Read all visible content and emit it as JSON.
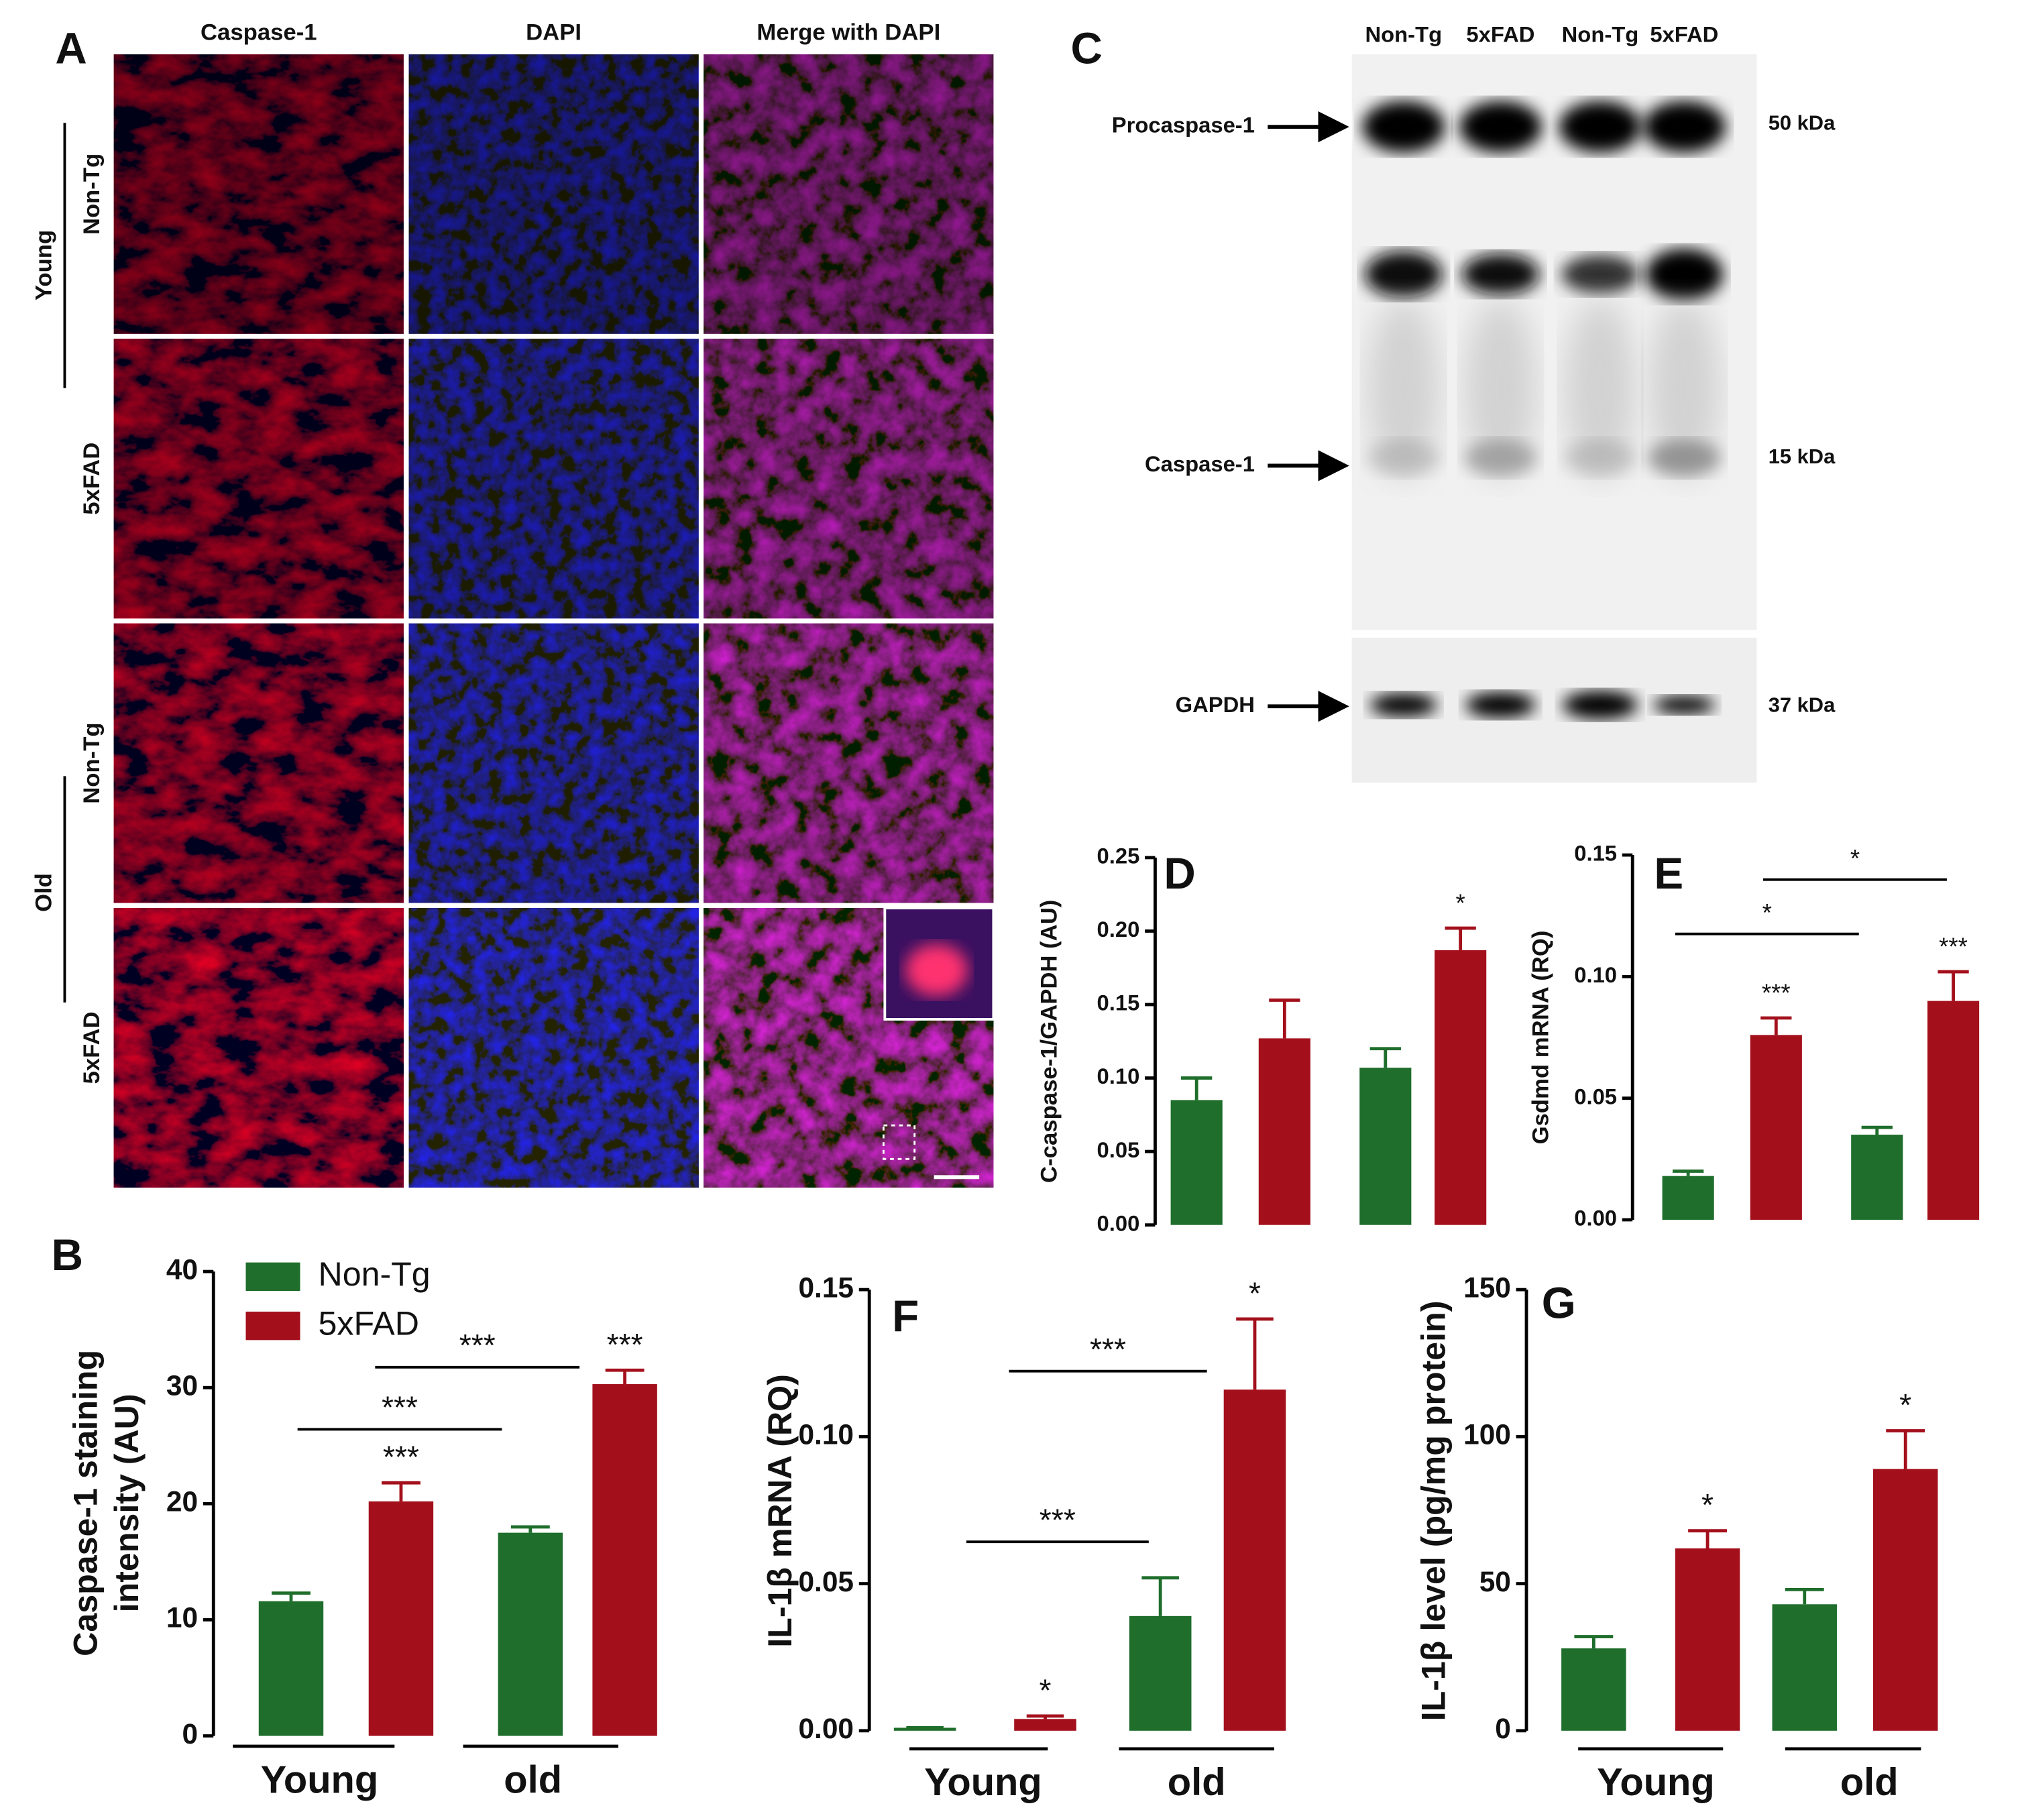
{
  "panel_a": {
    "label": "A",
    "columns": [
      "Caspase-1",
      "DAPI",
      "Merge with DAPI"
    ],
    "rows": [
      "Non-Tg",
      "5xFAD",
      "Non-Tg",
      "5xFAD"
    ],
    "groups": [
      "Young",
      "Old"
    ]
  },
  "panel_c": {
    "label": "C",
    "lanes": [
      "Non-Tg",
      "5xFAD",
      "Non-Tg",
      "5xFAD"
    ],
    "markers": [
      "Procaspase-1",
      "Caspase-1",
      "GAPDH"
    ],
    "sizes": [
      "50 kDa",
      "15 kDa",
      "37 kDa"
    ]
  },
  "chart_data": [
    {
      "type": "bar",
      "panel": "B",
      "ylabel": [
        "Caspase-1 staining",
        "intensity (AU)"
      ],
      "categories": [
        "Young",
        "old"
      ],
      "legend": "upper left",
      "series": [
        {
          "name": "Non-Tg",
          "color": "#1f6e2c",
          "values": [
            11.6,
            17.5
          ],
          "errors": [
            0.7,
            0.5
          ],
          "significance": [
            null,
            null
          ]
        },
        {
          "name": "5xFAD",
          "color": "#a3101c",
          "values": [
            20.2,
            30.3
          ],
          "errors": [
            1.6,
            1.2
          ],
          "significance": [
            "***",
            "***"
          ]
        }
      ],
      "ylim": [
        0,
        40
      ],
      "yticks": [
        0,
        10,
        20,
        30,
        40
      ],
      "brackets": [
        "***",
        "***"
      ]
    },
    {
      "type": "bar",
      "panel": "D",
      "ylabel": [
        "C-caspase-1/GAPDH (AU)"
      ],
      "categories": [
        null,
        null
      ],
      "series": [
        {
          "color": "#1f6e2c",
          "values": [
            0.085,
            0.107
          ],
          "errors": [
            0.015,
            0.013
          ],
          "significance": [
            null,
            null
          ]
        },
        {
          "color": "#a3101c",
          "values": [
            0.127,
            0.187
          ],
          "errors": [
            0.026,
            0.015
          ],
          "significance": [
            null,
            "*"
          ]
        }
      ],
      "ylim": [
        0,
        0.25
      ],
      "yticks": [
        {
          "value": 0,
          "label": "0.00"
        },
        {
          "value": 0.05,
          "label": "0.05"
        },
        {
          "value": 0.1,
          "label": "0.10"
        },
        {
          "value": 0.15,
          "label": "0.15"
        },
        {
          "value": 0.2,
          "label": "0.20"
        },
        {
          "value": 0.25,
          "label": "0.25"
        }
      ],
      "brackets": []
    },
    {
      "type": "bar",
      "panel": "E",
      "ylabel": [
        "Gsdmd mRNA (RQ)"
      ],
      "categories": [
        null,
        null
      ],
      "series": [
        {
          "color": "#1f6e2c",
          "values": [
            0.018,
            0.035
          ],
          "errors": [
            0.002,
            0.003
          ],
          "significance": [
            null,
            null
          ]
        },
        {
          "color": "#a3101c",
          "values": [
            0.076,
            0.09
          ],
          "errors": [
            0.007,
            0.012
          ],
          "significance": [
            "***",
            "***"
          ]
        }
      ],
      "ylim": [
        0,
        0.15
      ],
      "yticks": [
        {
          "value": 0,
          "label": "0.00"
        },
        {
          "value": 0.05,
          "label": "0.05"
        },
        {
          "value": 0.1,
          "label": "0.10"
        },
        {
          "value": 0.15,
          "label": "0.15"
        }
      ],
      "brackets": [
        "*",
        "*"
      ]
    },
    {
      "type": "bar",
      "panel": "F",
      "ylabel": [
        "IL-1β mRNA (RQ)"
      ],
      "categories": [
        "Young",
        "old"
      ],
      "series": [
        {
          "color": "#1f6e2c",
          "values": [
            0.001,
            0.039
          ],
          "errors": [
            0,
            0.013
          ],
          "significance": [
            null,
            null
          ]
        },
        {
          "color": "#a3101c",
          "values": [
            0.004,
            0.116
          ],
          "errors": [
            0.001,
            0.024
          ],
          "significance": [
            "*",
            "*"
          ]
        }
      ],
      "ylim": [
        0,
        0.15
      ],
      "yticks": [
        {
          "value": 0,
          "label": "0.00"
        },
        {
          "value": 0.05,
          "label": "0.05"
        },
        {
          "value": 0.1,
          "label": "0.10"
        },
        {
          "value": 0.15,
          "label": "0.15"
        }
      ],
      "brackets": [
        "***",
        "***"
      ]
    },
    {
      "type": "bar",
      "panel": "G",
      "ylabel": [
        "IL-1β level (pg/mg protein)"
      ],
      "categories": [
        "Young",
        "old"
      ],
      "series": [
        {
          "color": "#1f6e2c",
          "values": [
            28,
            43
          ],
          "errors": [
            4,
            5
          ],
          "significance": [
            null,
            null
          ]
        },
        {
          "color": "#a3101c",
          "values": [
            62,
            89
          ],
          "errors": [
            6,
            13
          ],
          "significance": [
            "*",
            "*"
          ]
        }
      ],
      "ylim": [
        0,
        150
      ],
      "yticks": [
        0,
        50,
        100,
        150
      ],
      "brackets": []
    }
  ]
}
